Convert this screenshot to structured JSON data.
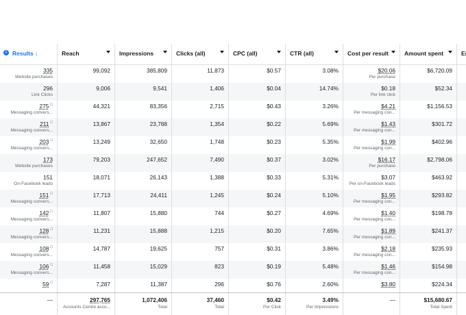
{
  "columns": [
    {
      "label": "Results ↓"
    },
    {
      "label": "Reach"
    },
    {
      "label": "Impressions"
    },
    {
      "label": "Clicks (all)"
    },
    {
      "label": "CPC (all)"
    },
    {
      "label": "CTR (all)"
    },
    {
      "label": "Cost per result"
    },
    {
      "label": "Amount spent"
    },
    {
      "label": "En"
    }
  ],
  "rows": [
    {
      "result": "335",
      "result_type": "Website purchases",
      "reach": "99,092",
      "impressions": "385,809",
      "clicks": "11,873",
      "cpc": "$0.57",
      "ctr": "3.08%",
      "cost": "$20.06",
      "cost_type": "Per purchase",
      "spent": "$6,720.09"
    },
    {
      "result": "296",
      "result_type": "Link Clicks",
      "reach": "9,006",
      "impressions": "9,541",
      "clicks": "1,406",
      "cpc": "$0.04",
      "ctr": "14.74%",
      "cost": "$0.18",
      "cost_type": "Per link click",
      "spent": "$52.34"
    },
    {
      "result": "275",
      "result_type": "Messaging convers...",
      "reach": "44,321",
      "impressions": "83,356",
      "clicks": "2,715",
      "cpc": "$0.43",
      "ctr": "3.26%",
      "cost": "$4.21",
      "cost_type": "Per messaging con...",
      "spent": "$1,156.53"
    },
    {
      "result": "211",
      "result_type": "Messaging convers...",
      "reach": "13,867",
      "impressions": "23,788",
      "clicks": "1,354",
      "cpc": "$0.22",
      "ctr": "5.69%",
      "cost": "$1.43",
      "cost_type": "Per messaging con...",
      "spent": "$301.72"
    },
    {
      "result": "203",
      "result_type": "Messaging convers...",
      "reach": "13,249",
      "impressions": "32,650",
      "clicks": "1,748",
      "cpc": "$0.23",
      "ctr": "5.35%",
      "cost": "$1.99",
      "cost_type": "Per messaging con...",
      "spent": "$402.96"
    },
    {
      "result": "173",
      "result_type": "Website purchases",
      "reach": "79,203",
      "impressions": "247,652",
      "clicks": "7,490",
      "cpc": "$0.37",
      "ctr": "3.02%",
      "cost": "$16.17",
      "cost_type": "Per purchase",
      "spent": "$2,798.06"
    },
    {
      "result": "151",
      "result_type": "On-Facebook leads",
      "reach": "18,071",
      "impressions": "26,143",
      "clicks": "1,388",
      "cpc": "$0.33",
      "ctr": "5.31%",
      "cost": "$3.07",
      "cost_type": "Per on-Facebook leads",
      "spent": "$463.92"
    },
    {
      "result": "151",
      "result_type": "Messaging convers...",
      "reach": "17,713",
      "impressions": "24,411",
      "clicks": "1,245",
      "cpc": "$0.24",
      "ctr": "5.10%",
      "cost": "$1.95",
      "cost_type": "Per messaging con...",
      "spent": "$293.82"
    },
    {
      "result": "142",
      "result_type": "Messaging convers...",
      "reach": "11,807",
      "impressions": "15,880",
      "clicks": "744",
      "cpc": "$0.27",
      "ctr": "4.69%",
      "cost": "$1.40",
      "cost_type": "Per messaging con...",
      "spent": "$198.78"
    },
    {
      "result": "128",
      "result_type": "Messaging convers...",
      "reach": "11,231",
      "impressions": "15,888",
      "clicks": "1,215",
      "cpc": "$0.20",
      "ctr": "7.65%",
      "cost": "$1.89",
      "cost_type": "Per messaging con...",
      "spent": "$241.37"
    },
    {
      "result": "108",
      "result_type": "Messaging convers...",
      "reach": "14,787",
      "impressions": "19,625",
      "clicks": "757",
      "cpc": "$0.31",
      "ctr": "3.86%",
      "cost": "$2.18",
      "cost_type": "Per messaging con...",
      "spent": "$235.93"
    },
    {
      "result": "106",
      "result_type": "Messaging convers...",
      "reach": "11,458",
      "impressions": "15,029",
      "clicks": "823",
      "cpc": "$0.19",
      "ctr": "5.48%",
      "cost": "$1.46",
      "cost_type": "Per messaging con...",
      "spent": "$154.98"
    },
    {
      "result": "59",
      "result_type": "",
      "reach": "7,287",
      "impressions": "11,387",
      "clicks": "296",
      "cpc": "$0.76",
      "ctr": "2.60%",
      "cost": "$3.80",
      "cost_type": "",
      "spent": "$224.34"
    }
  ],
  "totals": {
    "results": "—",
    "reach": "297,765",
    "reach_note": "Accounts Centre acco...",
    "impressions": "1,072,406",
    "impressions_note": "Total",
    "clicks": "37,460",
    "clicks_note": "Total",
    "cpc": "$0.42",
    "cpc_note": "Per Click",
    "ctr": "3.49%",
    "ctr_note": "Per Impressions",
    "cost": "—",
    "spent": "$15,680.67",
    "spent_note": "Total Spent"
  },
  "icons": {
    "info": "info-icon",
    "sort": "sort-down-icon",
    "message": "message-icon"
  },
  "colors": {
    "accent": "#1877f2",
    "row_alt": "#f5f6f7"
  }
}
